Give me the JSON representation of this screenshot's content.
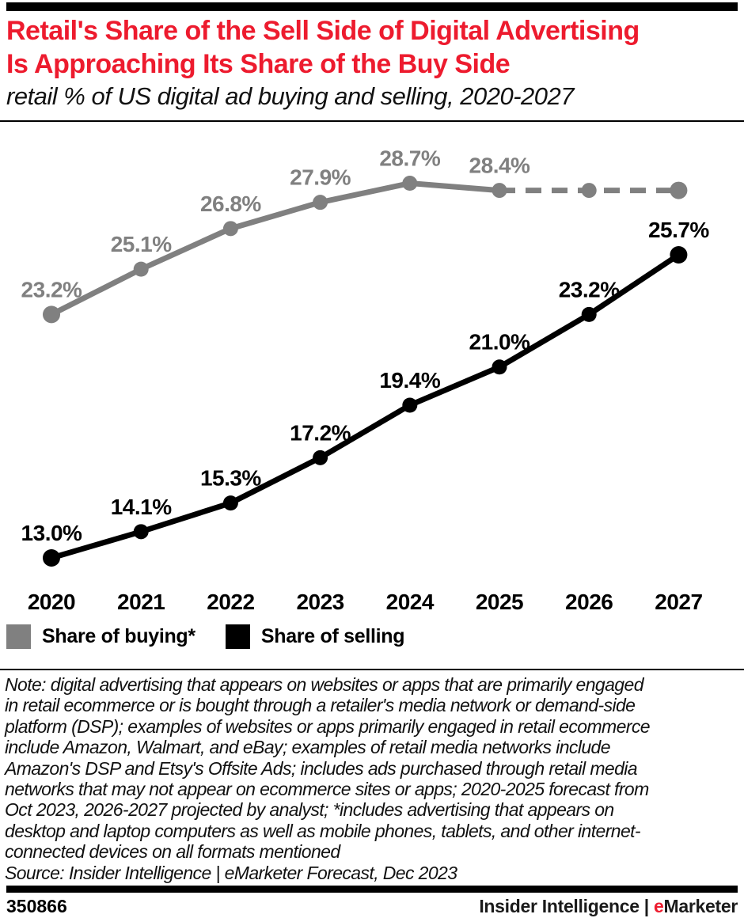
{
  "header": {
    "title_lines": [
      "Retail's Share of the Sell Side of Digital Advertising",
      "Is Approaching Its Share of the Buy Side"
    ],
    "subtitle": "retail % of US digital ad buying and selling, 2020-2027",
    "title_color": "#ed1b2e"
  },
  "chart_data": {
    "type": "line",
    "title": "Retail's Share of the Sell Side of Digital Advertising Is Approaching Its Share of the Buy Side",
    "subtitle": "retail % of US digital ad buying and selling, 2020-2027",
    "x": [
      2020,
      2021,
      2022,
      2023,
      2024,
      2025,
      2026,
      2027
    ],
    "series": [
      {
        "name": "Share of buying*",
        "color": "#808080",
        "values": [
          23.2,
          25.1,
          26.8,
          27.9,
          28.7,
          28.4,
          28.4,
          28.4
        ],
        "labels": [
          "23.2%",
          "25.1%",
          "26.8%",
          "27.9%",
          "28.7%",
          "28.4%",
          "",
          ""
        ],
        "dashed_from_index": 5
      },
      {
        "name": "Share of selling",
        "color": "#000000",
        "values": [
          13.0,
          14.1,
          15.3,
          17.2,
          19.4,
          21.0,
          23.2,
          25.7
        ],
        "labels": [
          "13.0%",
          "14.1%",
          "15.3%",
          "17.2%",
          "19.4%",
          "21.0%",
          "23.2%",
          "25.7%"
        ],
        "dashed_from_index": null
      }
    ],
    "ylim": [
      11,
      31
    ],
    "grid": false,
    "axes_shown": false,
    "legend_position": "bottom-left",
    "data_labels": true
  },
  "legend": {
    "items": [
      {
        "label": "Share of buying*",
        "color": "#808080"
      },
      {
        "label": "Share of selling",
        "color": "#000000"
      }
    ]
  },
  "note": {
    "lines": [
      "Note: digital advertising that appears on websites or apps that are primarily engaged",
      "in retail ecommerce or is bought through a retailer's media network or demand-side",
      "platform (DSP); examples of websites or apps primarily engaged in retail ecommerce",
      "include Amazon, Walmart, and eBay; examples of retail media networks include",
      "Amazon's DSP and Etsy's Offsite Ads; includes ads purchased through retail media",
      "networks that may not appear on ecommerce sites or apps; 2020-2025 forecast from",
      "Oct 2023, 2026-2027 projected by analyst; *includes advertising that appears on",
      "desktop and laptop computers as well as mobile phones, tablets, and other internet-",
      "connected devices on all formats mentioned"
    ],
    "source": "Source: Insider Intelligence | eMarketer Forecast, Dec 2023"
  },
  "footer": {
    "chart_id": "350866",
    "brand_prefix": "Insider Intelligence | ",
    "brand_e": "e",
    "brand_rest": "Marketer",
    "accent": "#ed1b2e"
  }
}
